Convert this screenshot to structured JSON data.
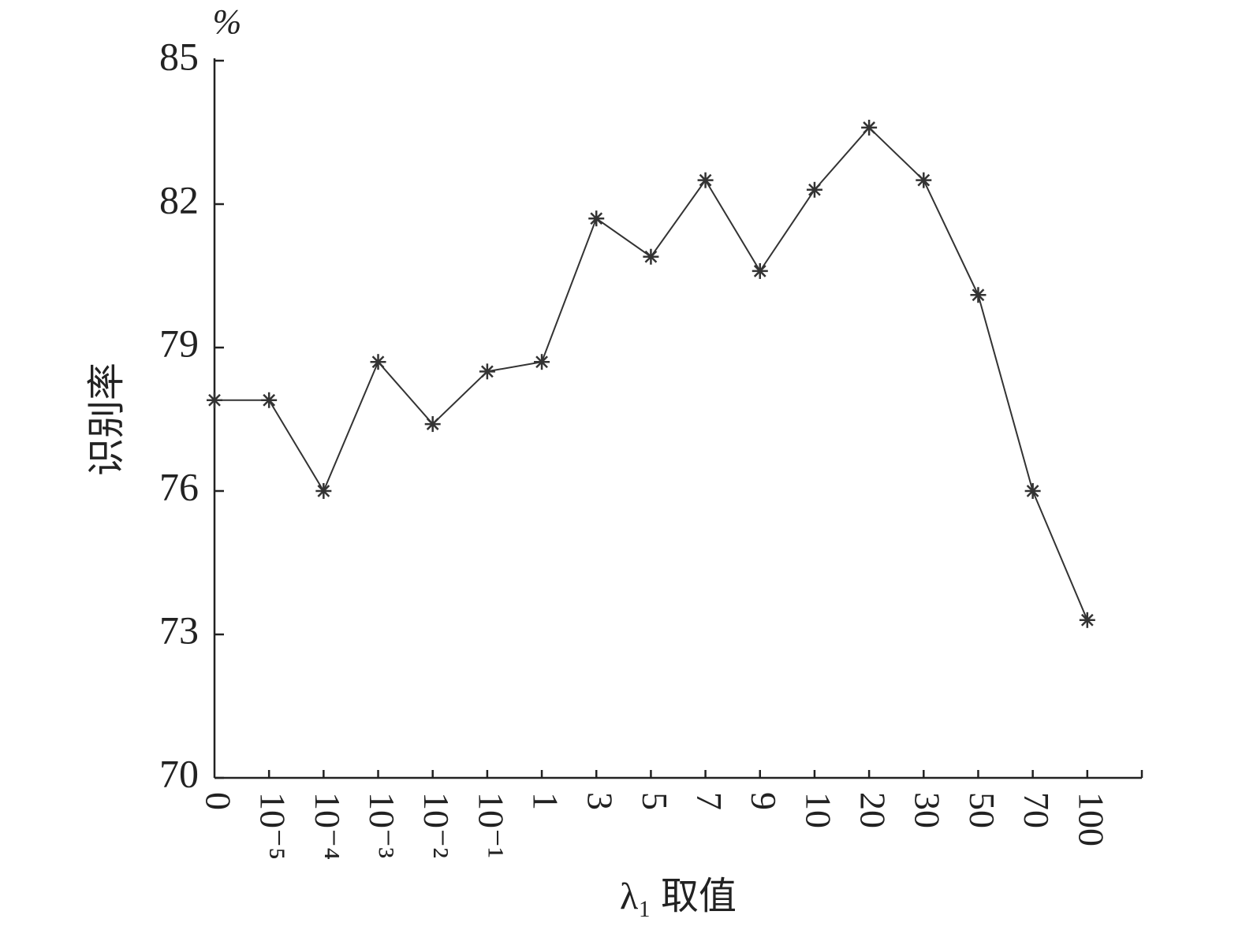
{
  "chart_data": {
    "type": "line",
    "y_unit": "%",
    "ylabel": "识别率",
    "xlabel": "λ₁ 取值",
    "categories": [
      "0",
      "10⁻⁵",
      "10⁻⁴",
      "10⁻³",
      "10⁻²",
      "10⁻¹",
      "1",
      "3",
      "5",
      "7",
      "9",
      "10",
      "20",
      "30",
      "50",
      "70",
      "100"
    ],
    "values": [
      77.9,
      77.9,
      76.0,
      78.7,
      77.4,
      78.5,
      78.7,
      81.7,
      80.9,
      82.5,
      80.6,
      82.3,
      83.6,
      82.5,
      80.1,
      76.0,
      73.3
    ],
    "color": "#333333",
    "marker": "asterisk",
    "ylim": [
      70,
      85
    ],
    "yticks": [
      70,
      73,
      76,
      79,
      82,
      85
    ]
  }
}
